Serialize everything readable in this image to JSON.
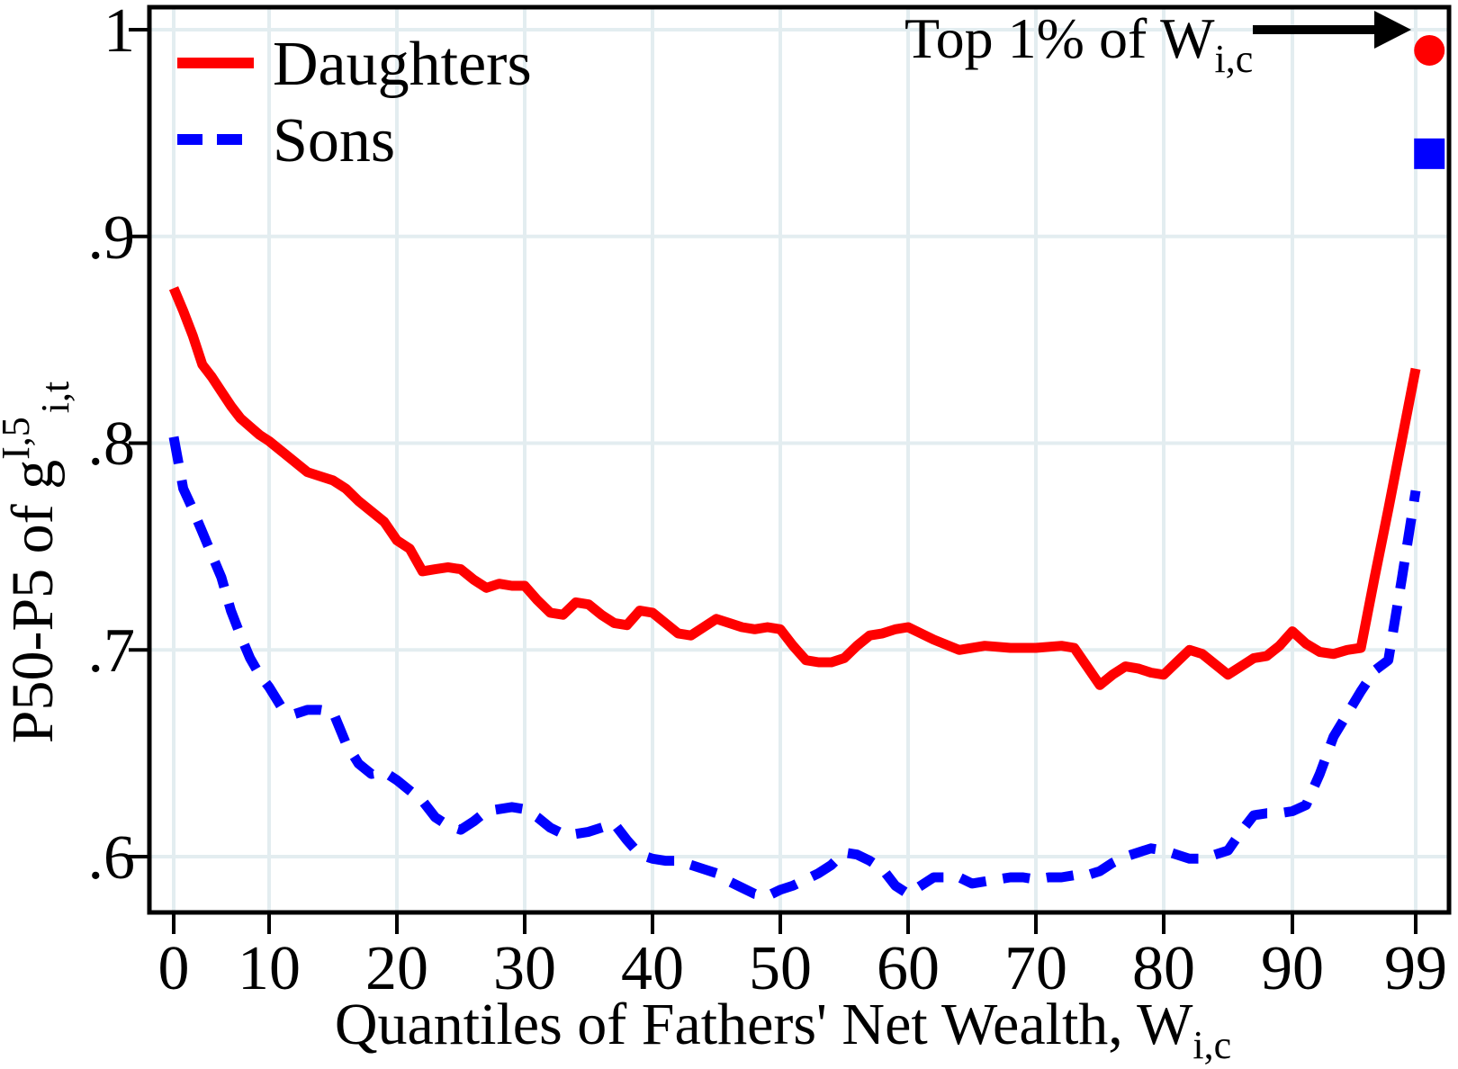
{
  "figure": {
    "background_color": "#ffffff",
    "frame_color": "#000000",
    "gridline_color": "#e3edf0",
    "legend": {
      "position": "top-left",
      "items": [
        {
          "label": "Daughters",
          "color": "#ff0000",
          "style": "solid"
        },
        {
          "label": "Sons",
          "color": "#0000ff",
          "style": "dashed"
        }
      ]
    },
    "annotation": {
      "text_main": "Top 1% of W",
      "text_sub": "i,c"
    },
    "x_axis": {
      "title_main": "Quantiles of Fathers' Net Wealth, W",
      "title_sub": "i,c",
      "tick_labels": [
        "0",
        "10",
        "20",
        "30",
        "40",
        "50",
        "60",
        "70",
        "80",
        "90",
        "99"
      ]
    },
    "y_axis": {
      "title_prefix": "P50-P5 of g",
      "title_sup": "I,5",
      "title_sub": "i,t",
      "tick_labels": [
        "1",
        ".9",
        ".8",
        ".7",
        ".6"
      ]
    }
  },
  "chart_data": {
    "type": "line",
    "title": "",
    "xlabel": "Quantiles of Fathers' Net Wealth, W_{i,c}",
    "ylabel": "P50-P5 of g^{I,5}_{i,t}",
    "xlim": [
      0,
      100
    ],
    "ylim": [
      0.57,
      1.01
    ],
    "x_ticks": [
      0,
      10,
      20,
      30,
      40,
      50,
      60,
      70,
      80,
      90,
      99
    ],
    "y_ticks": [
      1,
      0.9,
      0.8,
      0.7,
      0.6
    ],
    "grid": true,
    "legend_position": "top-left",
    "annotation": {
      "text": "Top 1% of W_{i,c}",
      "points_to": "top-1-percent markers at far right"
    },
    "series": [
      {
        "name": "Daughters",
        "color": "#ff0000",
        "style": "solid",
        "x": [
          0,
          1,
          2,
          3,
          4,
          5,
          6,
          7,
          8,
          9,
          10,
          11,
          12,
          13,
          14,
          15,
          16,
          17,
          18,
          19,
          20,
          21,
          22,
          23,
          24,
          25,
          26,
          27,
          28,
          29,
          30,
          31,
          32,
          33,
          34,
          35,
          36,
          37,
          38,
          39,
          40,
          41,
          42,
          43,
          44,
          45,
          46,
          47,
          48,
          49,
          50,
          51,
          52,
          53,
          54,
          55,
          56,
          57,
          58,
          59,
          60,
          62,
          64,
          66,
          68,
          70,
          72,
          73,
          75,
          76,
          77,
          78,
          79,
          80,
          81,
          82,
          83,
          84,
          85,
          86,
          87,
          88,
          89,
          90,
          91,
          92,
          93,
          94,
          95,
          96,
          97,
          98,
          99
        ],
        "y": [
          0.875,
          0.864,
          0.852,
          0.838,
          0.832,
          0.825,
          0.818,
          0.812,
          0.808,
          0.804,
          0.801,
          0.796,
          0.791,
          0.786,
          0.784,
          0.782,
          0.778,
          0.772,
          0.767,
          0.762,
          0.753,
          0.749,
          0.738,
          0.739,
          0.74,
          0.739,
          0.734,
          0.73,
          0.732,
          0.731,
          0.731,
          0.724,
          0.718,
          0.717,
          0.723,
          0.722,
          0.717,
          0.713,
          0.712,
          0.719,
          0.718,
          0.713,
          0.708,
          0.707,
          0.711,
          0.715,
          0.713,
          0.711,
          0.71,
          0.711,
          0.71,
          0.702,
          0.695,
          0.694,
          0.694,
          0.696,
          0.702,
          0.707,
          0.708,
          0.71,
          0.711,
          0.705,
          0.7,
          0.702,
          0.701,
          0.701,
          0.702,
          0.701,
          0.683,
          0.688,
          0.692,
          0.691,
          0.689,
          0.688,
          0.694,
          0.7,
          0.698,
          0.693,
          0.688,
          0.692,
          0.696,
          0.697,
          0.702,
          0.709,
          0.703,
          0.699,
          0.698,
          0.7,
          0.701,
          0.735,
          0.768,
          0.802,
          0.836
        ],
        "top1_marker": {
          "x": 100,
          "y": 0.99,
          "shape": "circle"
        }
      },
      {
        "name": "Sons",
        "color": "#0000ff",
        "style": "dashed",
        "x": [
          0,
          1,
          2,
          3,
          4,
          5,
          6,
          7,
          8,
          9,
          10,
          11,
          12,
          13,
          14,
          15,
          16,
          17,
          18,
          19,
          20,
          21,
          22,
          23,
          24,
          25,
          26,
          27,
          28,
          29,
          30,
          31,
          32,
          33,
          34,
          35,
          36,
          37,
          38,
          39,
          40,
          41,
          42,
          43,
          44,
          45,
          46,
          47,
          48,
          49,
          50,
          51,
          52,
          53,
          54,
          55,
          56,
          57,
          58,
          59,
          60,
          61,
          62,
          63,
          64,
          65,
          66,
          67,
          68,
          69,
          70,
          71,
          72,
          73,
          74,
          75,
          76,
          77,
          78,
          79,
          80,
          81,
          82,
          83,
          84,
          85,
          86,
          87,
          88,
          89,
          90,
          91,
          92,
          93,
          94,
          95,
          96,
          97,
          98,
          99
        ],
        "y": [
          0.803,
          0.778,
          0.768,
          0.757,
          0.746,
          0.735,
          0.719,
          0.707,
          0.696,
          0.688,
          0.682,
          0.672,
          0.669,
          0.671,
          0.671,
          0.67,
          0.655,
          0.645,
          0.64,
          0.641,
          0.637,
          0.632,
          0.627,
          0.619,
          0.615,
          0.613,
          0.617,
          0.622,
          0.623,
          0.624,
          0.623,
          0.619,
          0.614,
          0.611,
          0.611,
          0.612,
          0.614,
          0.616,
          0.608,
          0.601,
          0.599,
          0.598,
          0.598,
          0.596,
          0.594,
          0.592,
          0.588,
          0.585,
          0.582,
          0.581,
          0.584,
          0.586,
          0.589,
          0.592,
          0.596,
          0.602,
          0.601,
          0.598,
          0.594,
          0.586,
          0.582,
          0.586,
          0.59,
          0.59,
          0.59,
          0.587,
          0.588,
          0.589,
          0.59,
          0.59,
          0.589,
          0.59,
          0.59,
          0.591,
          0.591,
          0.593,
          0.597,
          0.6,
          0.602,
          0.604,
          0.603,
          0.601,
          0.599,
          0.599,
          0.601,
          0.603,
          0.612,
          0.62,
          0.621,
          0.621,
          0.622,
          0.625,
          0.64,
          0.658,
          0.669,
          0.68,
          0.69,
          0.695,
          0.735,
          0.777
        ],
        "top1_marker": {
          "x": 100,
          "y": 0.94,
          "shape": "square"
        }
      }
    ]
  }
}
